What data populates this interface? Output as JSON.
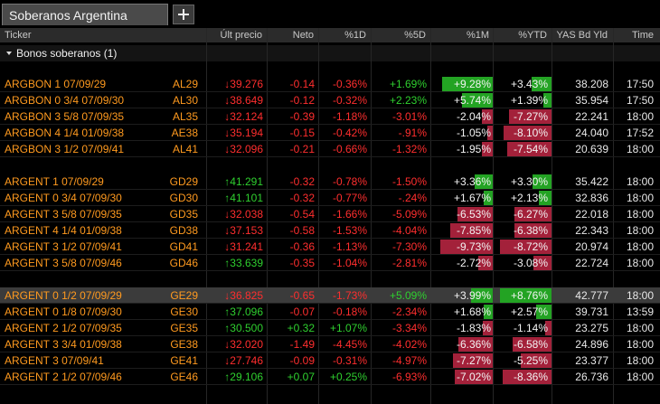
{
  "tab": {
    "title": "Soberanos Argentina"
  },
  "columns": [
    "Ticker",
    "Últ precio",
    "Neto",
    "%1D",
    "%5D",
    "%1M",
    "%YTD",
    "YAS Bd Yld",
    "Time"
  ],
  "group": "Bonos soberanos (1)",
  "groups": [
    {
      "rows": [
        {
          "name": "ARGBON 1 07/09/29",
          "ticker": "AL29",
          "price": "↓39.276",
          "net": "-0.14",
          "d1": "-0.36%",
          "d5": "+1.69%",
          "m1": "+9.28%",
          "ytd": "+3.43%",
          "yld": "38.208",
          "time": "17:50"
        },
        {
          "name": "ARGBON 0 3/4 07/09/30",
          "ticker": "AL30",
          "price": "↓38.649",
          "net": "-0.12",
          "d1": "-0.32%",
          "d5": "+2.23%",
          "m1": "+5.74%",
          "ytd": "+1.39%",
          "yld": "35.954",
          "time": "17:50"
        },
        {
          "name": "ARGBON 3 5/8 07/09/35",
          "ticker": "AL35",
          "price": "↓32.124",
          "net": "-0.39",
          "d1": "-1.18%",
          "d5": "-3.01%",
          "m1": "-2.04%",
          "ytd": "-7.27%",
          "yld": "22.241",
          "time": "18:00"
        },
        {
          "name": "ARGBON 4 1/4 01/09/38",
          "ticker": "AE38",
          "price": "↓35.194",
          "net": "-0.15",
          "d1": "-0.42%",
          "d5": "-.91%",
          "m1": "-1.05%",
          "ytd": "-8.10%",
          "yld": "24.040",
          "time": "17:52"
        },
        {
          "name": "ARGBON 3 1/2 07/09/41",
          "ticker": "AL41",
          "price": "↓32.096",
          "net": "-0.21",
          "d1": "-0.66%",
          "d5": "-1.32%",
          "m1": "-1.95%",
          "ytd": "-7.54%",
          "yld": "20.639",
          "time": "18:00"
        }
      ]
    },
    {
      "rows": [
        {
          "name": "ARGENT 1 07/09/29",
          "ticker": "GD29",
          "price": "↑41.291",
          "net": "-0.32",
          "d1": "-0.78%",
          "d5": "-1.50%",
          "m1": "+3.36%",
          "ytd": "+3.30%",
          "yld": "35.422",
          "time": "18:00"
        },
        {
          "name": "ARGENT 0 3/4 07/09/30",
          "ticker": "GD30",
          "price": "↑41.101",
          "net": "-0.32",
          "d1": "-0.77%",
          "d5": "-.24%",
          "m1": "+1.67%",
          "ytd": "+2.13%",
          "yld": "32.836",
          "time": "18:00"
        },
        {
          "name": "ARGENT 3 5/8 07/09/35",
          "ticker": "GD35",
          "price": "↓32.038",
          "net": "-0.54",
          "d1": "-1.66%",
          "d5": "-5.09%",
          "m1": "-6.53%",
          "ytd": "-6.27%",
          "yld": "22.018",
          "time": "18:00"
        },
        {
          "name": "ARGENT 4 1/4 01/09/38",
          "ticker": "GD38",
          "price": "↓37.153",
          "net": "-0.58",
          "d1": "-1.53%",
          "d5": "-4.04%",
          "m1": "-7.85%",
          "ytd": "-6.38%",
          "yld": "22.343",
          "time": "18:00"
        },
        {
          "name": "ARGENT 3 1/2 07/09/41",
          "ticker": "GD41",
          "price": "↓31.241",
          "net": "-0.36",
          "d1": "-1.13%",
          "d5": "-7.30%",
          "m1": "-9.73%",
          "ytd": "-8.72%",
          "yld": "20.974",
          "time": "18:00"
        },
        {
          "name": "ARGENT 3 5/8 07/09/46",
          "ticker": "GD46",
          "price": "↑33.639",
          "net": "-0.35",
          "d1": "-1.04%",
          "d5": "-2.81%",
          "m1": "-2.72%",
          "ytd": "-3.08%",
          "yld": "22.724",
          "time": "18:00"
        }
      ]
    },
    {
      "rows": [
        {
          "name": "ARGENT 0 1/2 07/09/29",
          "ticker": "GE29",
          "price": "↓36.825",
          "net": "-0.65",
          "d1": "-1.73%",
          "d5": "+5.09%",
          "m1": "+3.99%",
          "ytd": "+8.76%",
          "yld": "42.777",
          "time": "18:00"
        },
        {
          "name": "ARGENT 0 1/8 07/09/30",
          "ticker": "GE30",
          "price": "↑37.096",
          "net": "-0.07",
          "d1": "-0.18%",
          "d5": "-2.34%",
          "m1": "+1.68%",
          "ytd": "+2.57%",
          "yld": "39.731",
          "time": "13:59"
        },
        {
          "name": "ARGENT 2 1/2 07/09/35",
          "ticker": "GE35",
          "price": "↑30.500",
          "net": "+0.32",
          "d1": "+1.07%",
          "d5": "-3.34%",
          "m1": "-1.83%",
          "ytd": "-1.14%",
          "yld": "23.275",
          "time": "18:00"
        },
        {
          "name": "ARGENT 3 3/4 01/09/38",
          "ticker": "GE38",
          "price": "↓32.020",
          "net": "-1.49",
          "d1": "-4.45%",
          "d5": "-4.02%",
          "m1": "-6.36%",
          "ytd": "-6.58%",
          "yld": "24.896",
          "time": "18:00"
        },
        {
          "name": "ARGENT 3 07/09/41",
          "ticker": "GE41",
          "price": "↓27.746",
          "net": "-0.09",
          "d1": "-0.31%",
          "d5": "-4.97%",
          "m1": "-7.27%",
          "ytd": "-5.25%",
          "yld": "23.377",
          "time": "18:00"
        },
        {
          "name": "ARGENT 2 1/2 07/09/46",
          "ticker": "GE46",
          "price": "↑29.106",
          "net": "+0.07",
          "d1": "+0.25%",
          "d5": "-6.93%",
          "m1": "-7.02%",
          "ytd": "-8.36%",
          "yld": "26.736",
          "time": "18:00"
        }
      ]
    }
  ]
}
